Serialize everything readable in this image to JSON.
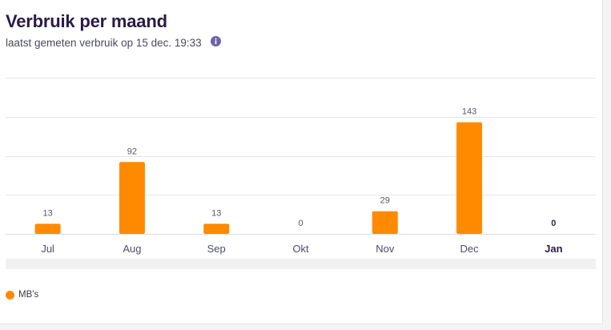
{
  "header": {
    "title": "Verbruik per maand",
    "subtitle": "laatst gemeten verbruik op 15 dec. 19:33"
  },
  "icons": {
    "info": "info-icon"
  },
  "colors": {
    "bar": "#ff8a00",
    "title": "#2b1b47",
    "tick_label": "#4d4d6b",
    "value_label": "#555566",
    "grid": "#e6e6e6"
  },
  "chart_data": {
    "type": "bar",
    "categories": [
      "Jul",
      "Aug",
      "Sep",
      "Okt",
      "Nov",
      "Dec",
      "Jan"
    ],
    "series": [
      {
        "name": "MB's",
        "values": [
          13,
          92,
          13,
          0,
          29,
          143,
          0
        ]
      }
    ],
    "data_labels": [
      "13",
      "92",
      "13",
      "0",
      "29",
      "143",
      "0"
    ],
    "highlighted_category": "Jan",
    "xlabel": "",
    "ylabel": "",
    "ylim": [
      0,
      200
    ],
    "grid": true,
    "legend": "bottom-left"
  },
  "legend": {
    "items": [
      {
        "label": "MB's",
        "color": "#ff8a00"
      }
    ]
  }
}
